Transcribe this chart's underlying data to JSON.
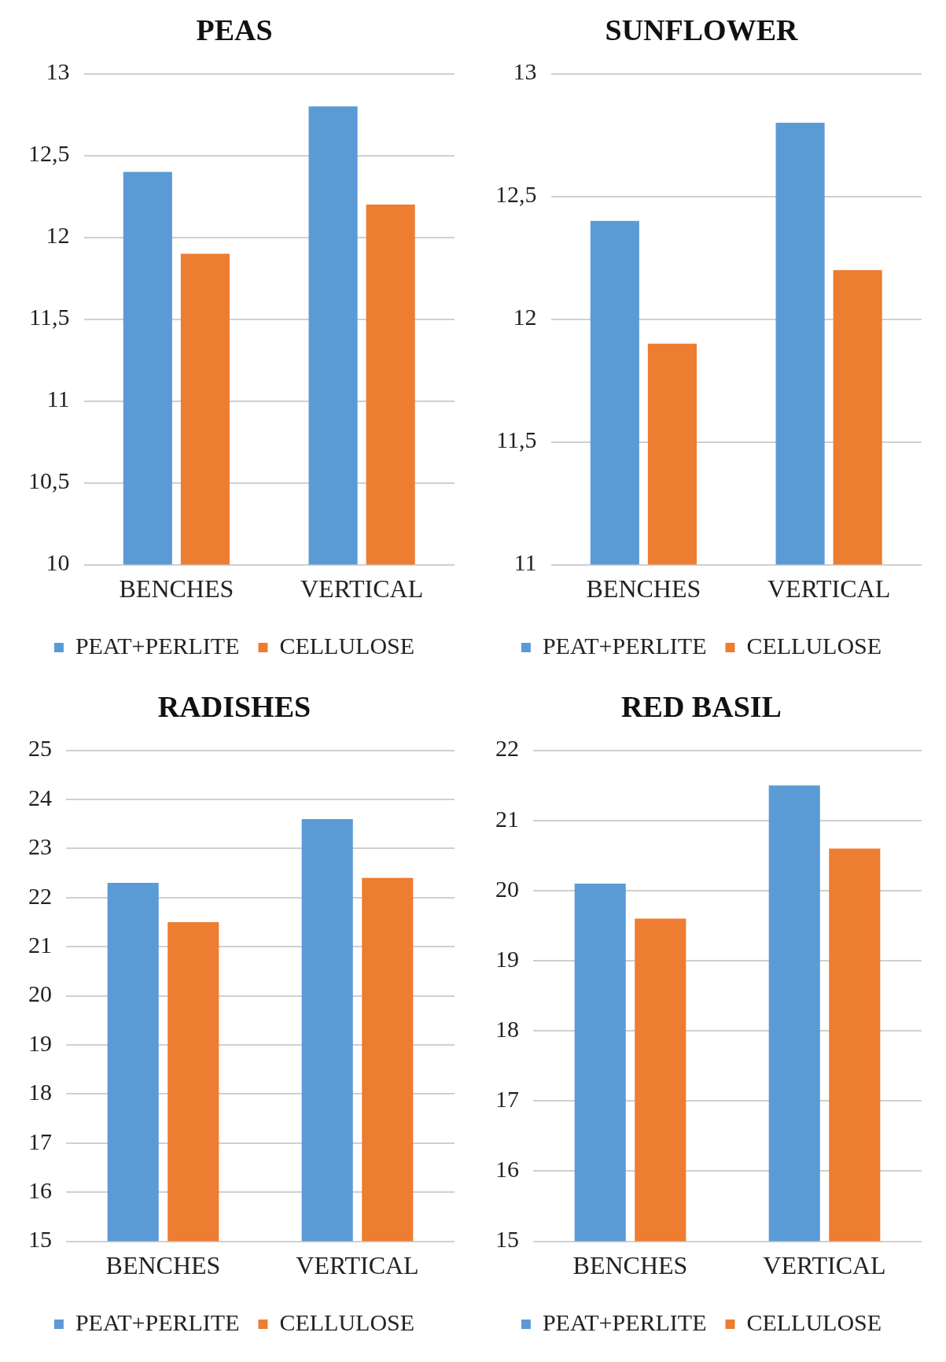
{
  "chart_data": [
    {
      "type": "bar",
      "title": "PEAS",
      "categories": [
        "BENCHES",
        "VERTICAL"
      ],
      "series": [
        {
          "name": "PEAT+PERLITE",
          "color": "#5b9bd5",
          "values": [
            12.4,
            12.8
          ]
        },
        {
          "name": "CELLULOSE",
          "color": "#ed7d31",
          "values": [
            11.9,
            12.2
          ]
        }
      ],
      "ylim": [
        10,
        13
      ],
      "yticks": [
        10,
        {
          "value": 10.5,
          "label": "10,5"
        },
        11,
        {
          "value": 11.5,
          "label": "11,5"
        },
        12,
        {
          "value": 12.5,
          "label": "12,5"
        },
        13
      ],
      "grid": "y",
      "legend": "bottom"
    },
    {
      "type": "bar",
      "title": "SUNFLOWER",
      "categories": [
        "BENCHES",
        "VERTICAL"
      ],
      "series": [
        {
          "name": "PEAT+PERLITE",
          "color": "#5b9bd5",
          "values": [
            12.4,
            12.8
          ]
        },
        {
          "name": "CELLULOSE",
          "color": "#ed7d31",
          "values": [
            11.9,
            12.2
          ]
        }
      ],
      "ylim": [
        11,
        13
      ],
      "yticks": [
        11,
        {
          "value": 11.5,
          "label": "11,5"
        },
        12,
        {
          "value": 12.5,
          "label": "12,5"
        },
        13
      ],
      "grid": "y",
      "legend": "bottom"
    },
    {
      "type": "bar",
      "title": "RADISHES",
      "categories": [
        "BENCHES",
        "VERTICAL"
      ],
      "series": [
        {
          "name": "PEAT+PERLITE",
          "color": "#5b9bd5",
          "values": [
            22.3,
            23.6
          ]
        },
        {
          "name": "CELLULOSE",
          "color": "#ed7d31",
          "values": [
            21.5,
            22.4
          ]
        }
      ],
      "ylim": [
        15,
        25
      ],
      "yticks": [
        15,
        16,
        17,
        18,
        19,
        20,
        21,
        22,
        23,
        24,
        25
      ],
      "grid": "y",
      "legend": "bottom"
    },
    {
      "type": "bar",
      "title": "RED BASIL",
      "categories": [
        "BENCHES",
        "VERTICAL"
      ],
      "series": [
        {
          "name": "PEAT+PERLITE",
          "color": "#5b9bd5",
          "values": [
            20.1,
            21.5
          ]
        },
        {
          "name": "CELLULOSE",
          "color": "#ed7d31",
          "values": [
            19.6,
            20.6
          ]
        }
      ],
      "ylim": [
        15,
        22
      ],
      "yticks": [
        15,
        16,
        17,
        18,
        19,
        20,
        21,
        22
      ],
      "grid": "y",
      "legend": "bottom"
    }
  ]
}
